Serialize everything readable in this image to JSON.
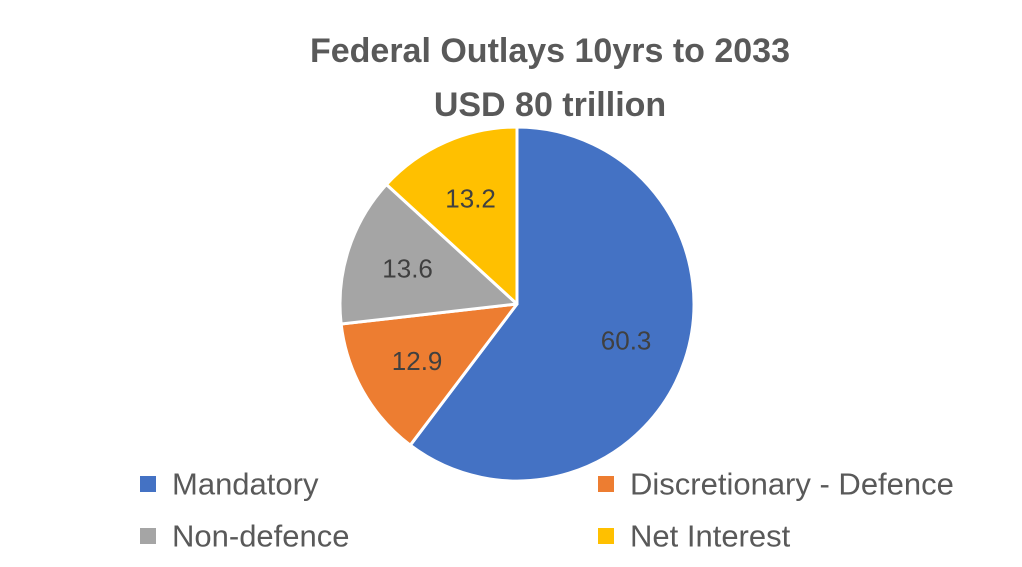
{
  "chart_data": {
    "type": "pie",
    "title": "Federal Outlays 10yrs to 2033",
    "subtitle": "USD 80 trillion",
    "slices": [
      {
        "name": "Mandatory",
        "value": 60.3,
        "label": "60.3",
        "color": "#4472C4"
      },
      {
        "name": "Discretionary - Defence",
        "value": 12.9,
        "label": "12.9",
        "color": "#ED7D31"
      },
      {
        "name": "Non-defence",
        "value": 13.6,
        "label": "13.6",
        "color": "#A5A5A5"
      },
      {
        "name": "Net Interest",
        "value": 13.2,
        "label": "13.2",
        "color": "#FFC000"
      }
    ],
    "legend_placement": "bottom",
    "start_angle": "12 o'clock",
    "direction": "clockwise"
  }
}
